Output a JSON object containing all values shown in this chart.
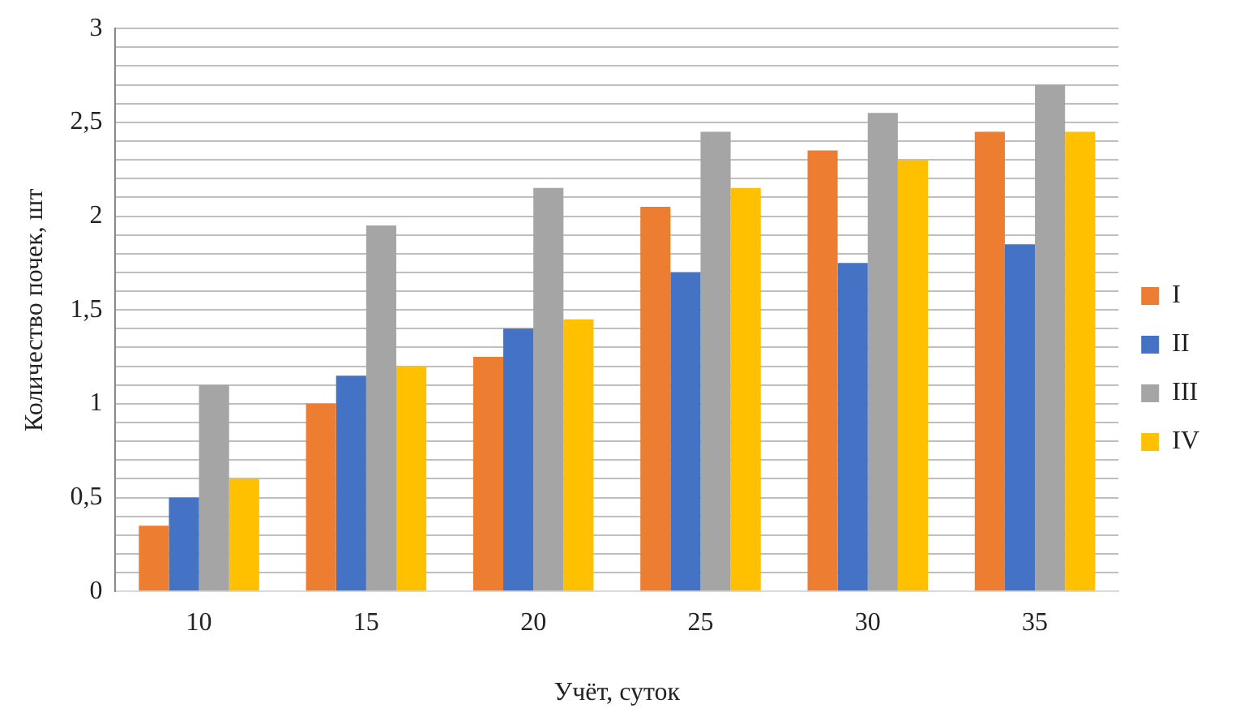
{
  "chart_data": {
    "type": "bar",
    "xlabel": "Учёт, суток",
    "ylabel": "Количество почек, шт",
    "categories": [
      "10",
      "15",
      "20",
      "25",
      "30",
      "35"
    ],
    "series": [
      {
        "name": "I",
        "color": "#ed7d31",
        "values": [
          0.35,
          1.0,
          1.25,
          2.05,
          2.35,
          2.45
        ]
      },
      {
        "name": "II",
        "color": "#4472c4",
        "values": [
          0.5,
          1.15,
          1.4,
          1.7,
          1.75,
          1.85
        ]
      },
      {
        "name": "III",
        "color": "#a5a5a5",
        "values": [
          1.1,
          1.95,
          2.15,
          2.45,
          2.55,
          2.7
        ]
      },
      {
        "name": "IV",
        "color": "#ffc000",
        "values": [
          0.6,
          1.2,
          1.45,
          2.15,
          2.3,
          2.45
        ]
      }
    ],
    "ylim": [
      0,
      3
    ],
    "yticks": [
      0,
      {
        "value": 0.1,
        "label": null
      },
      {
        "value": 0.2,
        "label": null
      },
      {
        "value": 0.3,
        "label": null
      },
      {
        "value": 0.4,
        "label": null
      },
      {
        "value": 0.5,
        "label": "0,5"
      },
      {
        "value": 0.6,
        "label": null
      },
      {
        "value": 0.7,
        "label": null
      },
      {
        "value": 0.8,
        "label": null
      },
      {
        "value": 0.9,
        "label": null
      },
      1,
      {
        "value": 1.1,
        "label": null
      },
      {
        "value": 1.2,
        "label": null
      },
      {
        "value": 1.3,
        "label": null
      },
      {
        "value": 1.4,
        "label": null
      },
      {
        "value": 1.5,
        "label": "1,5"
      },
      {
        "value": 1.6,
        "label": null
      },
      {
        "value": 1.7,
        "label": null
      },
      {
        "value": 1.8,
        "label": null
      },
      {
        "value": 1.9,
        "label": null
      },
      2,
      {
        "value": 2.1,
        "label": null
      },
      {
        "value": 2.2,
        "label": null
      },
      {
        "value": 2.3,
        "label": null
      },
      {
        "value": 2.4,
        "label": null
      },
      {
        "value": 2.5,
        "label": "2,5"
      },
      {
        "value": 2.6,
        "label": null
      },
      {
        "value": 2.7,
        "label": null
      },
      {
        "value": 2.8,
        "label": null
      },
      {
        "value": 2.9,
        "label": null
      },
      3
    ],
    "grid": "y",
    "legend": "right"
  }
}
